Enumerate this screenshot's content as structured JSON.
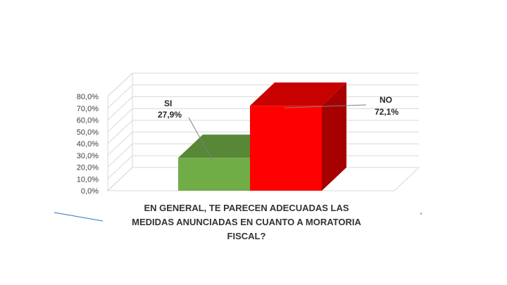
{
  "chart_data": {
    "type": "bar",
    "categories": [
      "SI",
      "NO"
    ],
    "values": [
      27.9,
      72.1
    ],
    "value_labels": [
      "27,9%",
      "72,1%"
    ],
    "colors": [
      "#70ad47",
      "#ff0000"
    ],
    "title_lines": [
      "EN GENERAL, TE PARECEN ADECUADAS LAS",
      "MEDIDAS ANUNCIADAS EN CUANTO A MORATORIA",
      "FISCAL?"
    ],
    "ylim": [
      0,
      80
    ],
    "y_ticks": [
      "0,0%",
      "10,0%",
      "20,0%",
      "30,0%",
      "40,0%",
      "50,0%",
      "60,0%",
      "70,0%",
      "80,0%"
    ],
    "grid": true,
    "three_d": true
  }
}
